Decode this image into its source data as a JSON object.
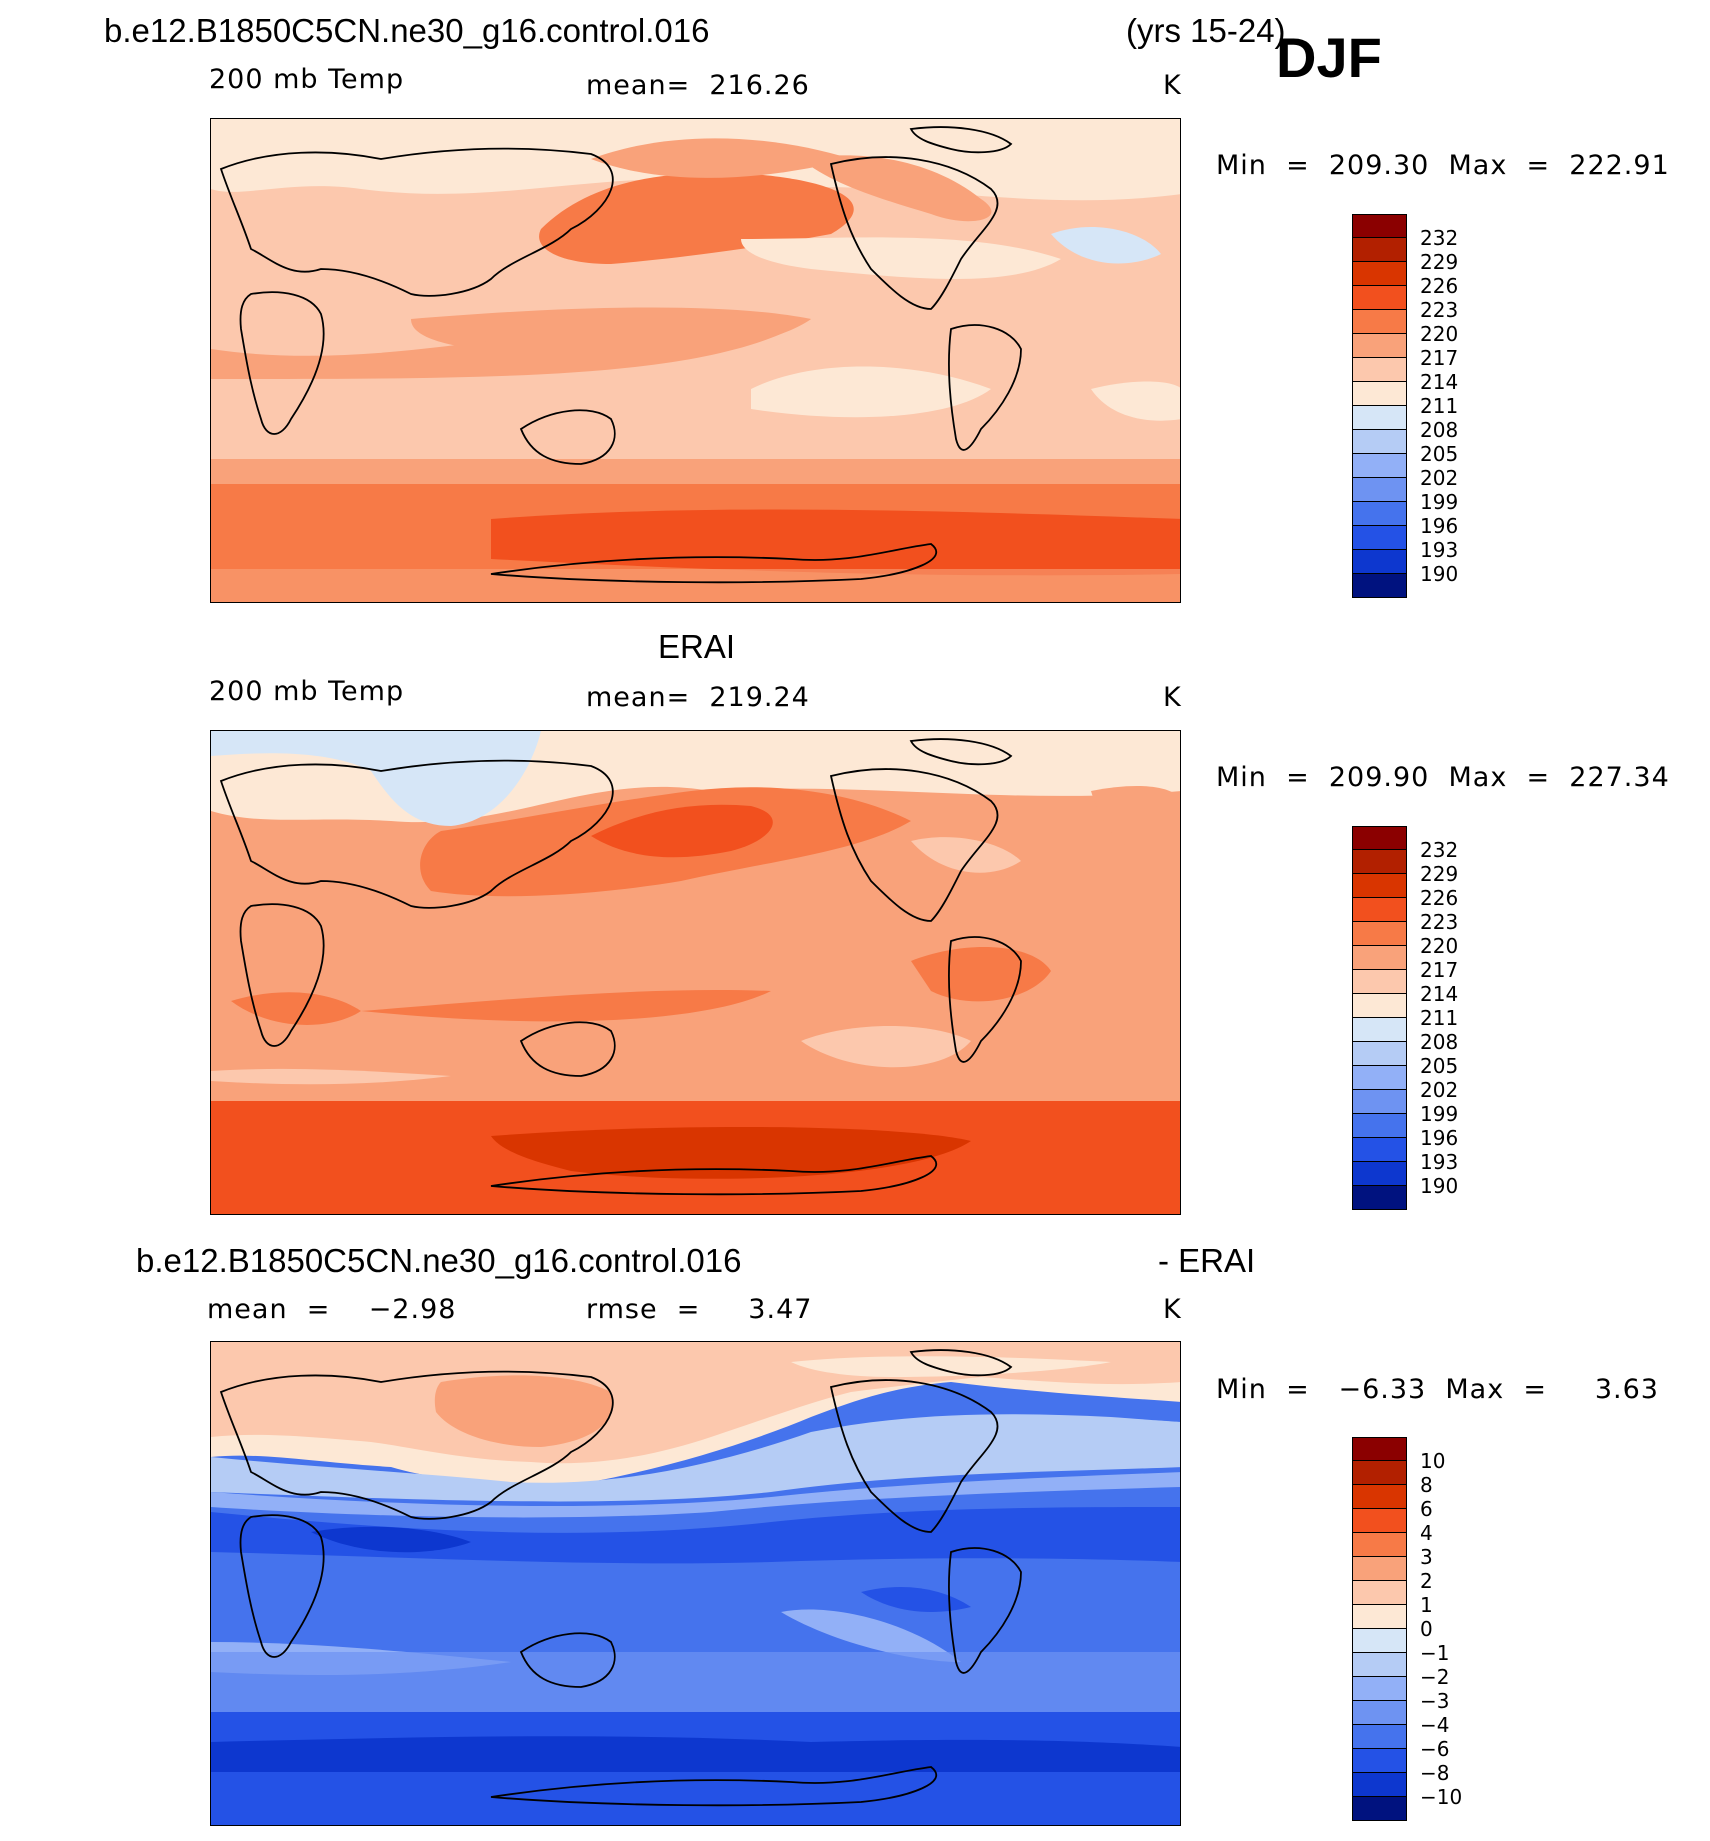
{
  "header": {
    "case_name": "b.e12.B1850C5CN.ne30_g16.control.016",
    "years": "(yrs 15-24)",
    "season": "DJF"
  },
  "panels": [
    {
      "title": "",
      "left_label": "200 mb Temp",
      "center_label": "mean=  216.26",
      "units": "K",
      "minmax": "Min  =  209.30  Max  =  222.91",
      "colorbar_labels": [
        "232",
        "229",
        "226",
        "223",
        "220",
        "217",
        "214",
        "211",
        "208",
        "205",
        "202",
        "199",
        "196",
        "193",
        "190"
      ]
    },
    {
      "title": "ERAI",
      "left_label": "200 mb Temp",
      "center_label": "mean=  219.24",
      "units": "K",
      "minmax": "Min  =  209.90  Max  =  227.34",
      "colorbar_labels": [
        "232",
        "229",
        "226",
        "223",
        "220",
        "217",
        "214",
        "211",
        "208",
        "205",
        "202",
        "199",
        "196",
        "193",
        "190"
      ]
    },
    {
      "title_left": "b.e12.B1850C5CN.ne30_g16.control.016",
      "title_right": "- ERAI",
      "left_label": "mean  =    −2.98",
      "center_label": "rmse  =     3.47",
      "units": "K",
      "minmax": "Min  =   −6.33  Max  =     3.63",
      "colorbar_labels": [
        "10",
        "8",
        "6",
        "4",
        "3",
        "2",
        "1",
        "0",
        "−1",
        "−2",
        "−3",
        "−4",
        "−6",
        "−8",
        "−10"
      ]
    }
  ],
  "colors": {
    "scale": [
      "#8b0000",
      "#b22000",
      "#d93500",
      "#f2501e",
      "#f77a47",
      "#f9a27a",
      "#fcc8ad",
      "#fde8d5",
      "#d6e6f7",
      "#b5ccf5",
      "#92b0f7",
      "#6e93f2",
      "#4573ed",
      "#2452e6",
      "#0d37cf",
      "#0a22a8",
      "#00127f"
    ]
  }
}
